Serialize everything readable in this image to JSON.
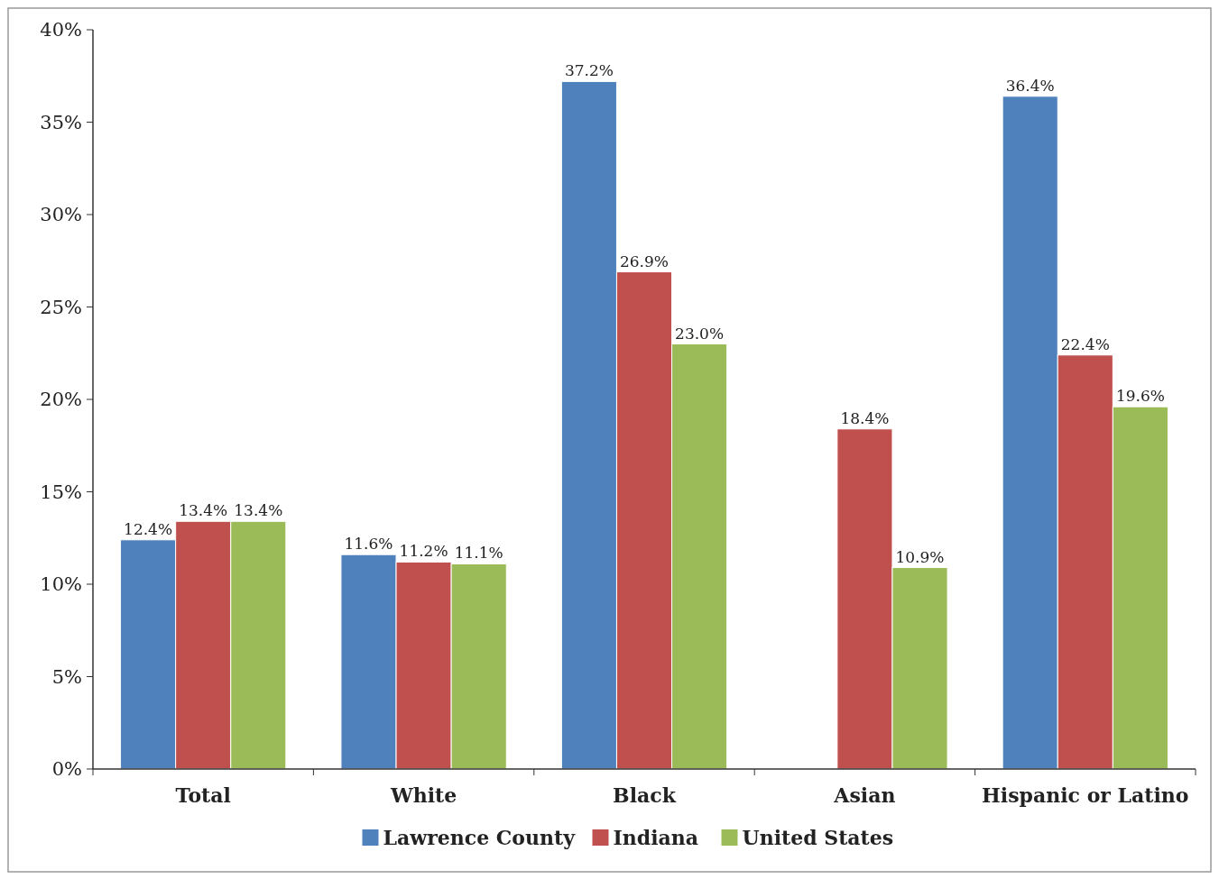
{
  "chart_data": {
    "type": "bar",
    "categories": [
      "Total",
      "White",
      "Black",
      "Asian",
      "Hispanic or Latino"
    ],
    "series": [
      {
        "name": "Lawrence County",
        "color": "#4f81bd",
        "values": [
          12.4,
          11.6,
          37.2,
          null,
          36.4
        ]
      },
      {
        "name": "Indiana",
        "color": "#c0504d",
        "values": [
          13.4,
          11.2,
          26.9,
          18.4,
          22.4
        ]
      },
      {
        "name": "United States",
        "color": "#9bbb59",
        "values": [
          13.4,
          11.1,
          23.0,
          10.9,
          19.6
        ]
      }
    ],
    "value_labels": [
      [
        "12.4%",
        "11.6%",
        "37.2%",
        null,
        "36.4%"
      ],
      [
        "13.4%",
        "11.2%",
        "26.9%",
        "18.4%",
        "22.4%"
      ],
      [
        "13.4%",
        "11.1%",
        "23.0%",
        "10.9%",
        "19.6%"
      ]
    ],
    "ylim": [
      0,
      40
    ],
    "yticks": [
      {
        "value": 0,
        "label": "0%"
      },
      {
        "value": 5,
        "label": "5%"
      },
      {
        "value": 10,
        "label": "10%"
      },
      {
        "value": 15,
        "label": "15%"
      },
      {
        "value": 20,
        "label": "20%"
      },
      {
        "value": 25,
        "label": "25%"
      },
      {
        "value": 30,
        "label": "30%"
      },
      {
        "value": 35,
        "label": "35%"
      },
      {
        "value": 40,
        "label": "40%"
      }
    ],
    "grid": false,
    "legend": "bottom"
  }
}
